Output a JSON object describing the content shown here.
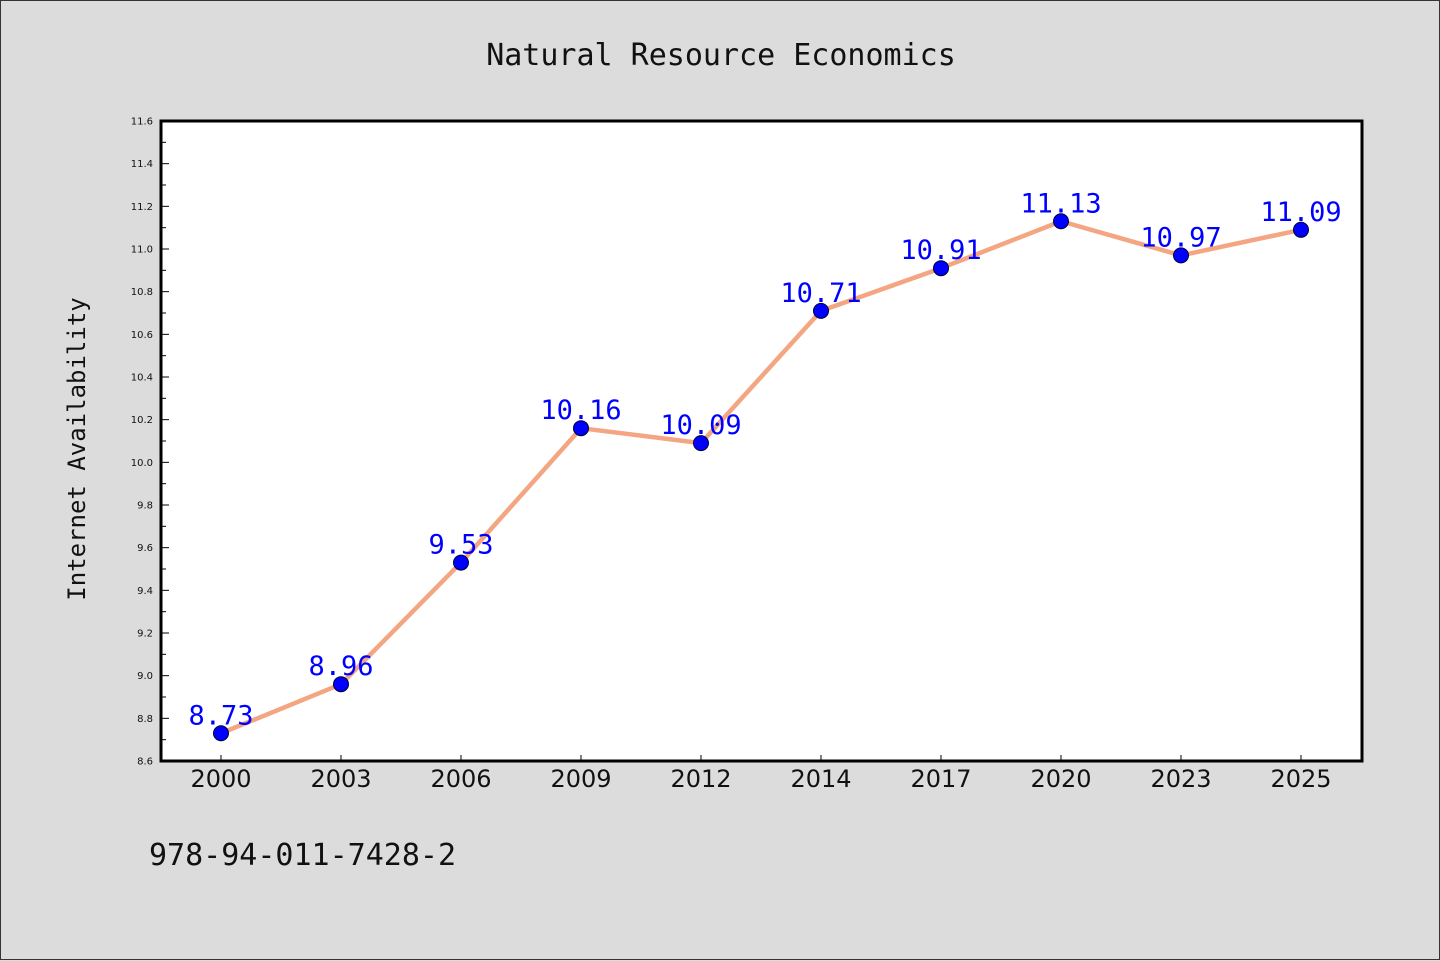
{
  "chart_data": {
    "type": "line",
    "title": "Natural Resource Economics",
    "xlabel": "",
    "ylabel": "Internet Availability",
    "categories": [
      "2000",
      "2003",
      "2006",
      "2009",
      "2012",
      "2014",
      "2017",
      "2020",
      "2023",
      "2025"
    ],
    "series": [
      {
        "values": [
          8.73,
          8.96,
          9.53,
          10.16,
          10.09,
          10.71,
          10.91,
          11.13,
          10.97,
          11.09
        ],
        "line_color": "#f4a582",
        "marker_color": "#0000ff"
      }
    ],
    "data_labels": [
      "8.73",
      "8.96",
      "9.53",
      "10.16",
      "10.09",
      "10.71",
      "10.91",
      "11.13",
      "10.97",
      "11.09"
    ],
    "ylim": [
      8.6,
      11.6
    ],
    "yticks": [
      "8.6",
      "8.8",
      "9.0",
      "9.2",
      "9.4",
      "9.6",
      "9.8",
      "10.0",
      "10.2",
      "10.4",
      "10.6",
      "10.8",
      "11.0",
      "11.2",
      "11.4",
      "11.6"
    ],
    "grid": false,
    "legend": "none",
    "label_color": "#0000ff"
  },
  "footer": "978-94-011-7428-2"
}
